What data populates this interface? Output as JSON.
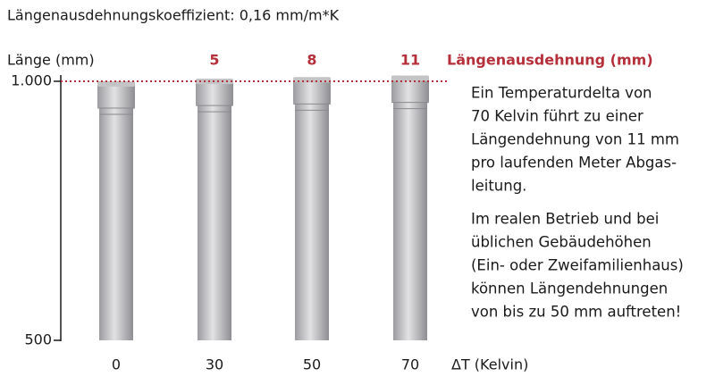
{
  "chart_data": {
    "type": "pipes",
    "title": "Längenausdehnungskoeffizient: 0,16 mm/m*K",
    "y_label": "Länge (mm)",
    "x_label": "ΔT (Kelvin)",
    "categories": [
      "0",
      "30",
      "50",
      "70"
    ],
    "values": [
      1000,
      1005,
      1008,
      1011
    ],
    "color": "#c4c4c6",
    "expansion_name": "Längenausdehnung (mm)",
    "expansion": [
      null,
      5,
      8,
      11
    ],
    "expansion_color": "#b5303b",
    "ylim": [
      500,
      1000
    ],
    "yticks": [
      500,
      {
        "value": 1000,
        "label": "1.000"
      }
    ],
    "reference_line": {
      "value": 1000,
      "color": "#b5303b",
      "style": "dotted"
    },
    "notes": [
      [
        "Ein Temperaturdelta von",
        "70 Kelvin führt zu einer",
        "Längendehnung von 11 mm",
        "pro laufenden Meter Abgas-",
        "leitung."
      ],
      [
        "Im realen Betrieb und bei",
        "üblichen Gebäudehöhen",
        "(Ein- oder Zweifamilienhaus)",
        "können Längendehnungen",
        "von bis zu 50 mm auftreten!"
      ]
    ]
  }
}
